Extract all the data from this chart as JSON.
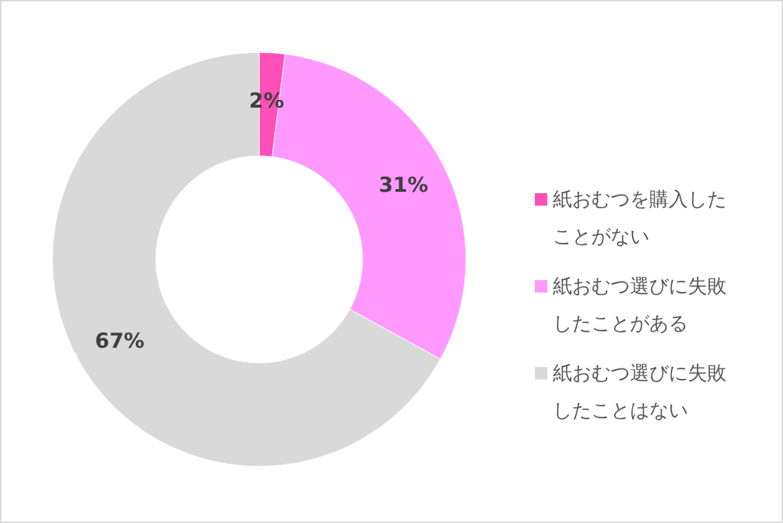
{
  "chart_data": {
    "type": "donut",
    "categories": [
      "紙おむつを購入したことがない",
      "紙おむつ選びに失敗したことがある",
      "紙おむつ選びに失敗したことはない"
    ],
    "values": [
      2,
      31,
      67
    ],
    "colors": [
      "#ff4fb8",
      "#ff99ff",
      "#d9d9d9"
    ],
    "value_labels": [
      "2%",
      "31%",
      "67%"
    ],
    "legend": "right"
  }
}
